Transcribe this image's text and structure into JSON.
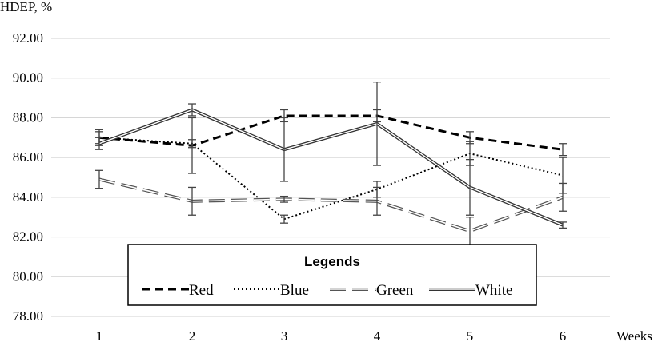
{
  "chart_data": {
    "type": "line",
    "ylabel": "HDEP, %",
    "xlabel": "Weeks",
    "x": [
      1,
      2,
      3,
      4,
      5,
      6
    ],
    "x_tick_labels": [
      "1",
      "2",
      "3",
      "4",
      "5",
      "6"
    ],
    "ylim": [
      78,
      92
    ],
    "y_tick_labels": [
      "78.00",
      "80.00",
      "82.00",
      "84.00",
      "86.00",
      "88.00",
      "90.00",
      "92.00"
    ],
    "y_ticks": [
      78,
      80,
      82,
      84,
      86,
      88,
      90,
      92
    ],
    "grid": "horizontal",
    "legend_title": "Legends",
    "legend_position": "bottom-center",
    "series": [
      {
        "name": "Red",
        "style": "dashed-bold",
        "values": [
          87.0,
          86.6,
          88.1,
          88.1,
          87.0,
          86.4
        ],
        "error": [
          0.4,
          1.4,
          0.3,
          0.3,
          0.3,
          0.3
        ]
      },
      {
        "name": "Blue",
        "style": "dotted",
        "values": [
          87.0,
          86.7,
          82.9,
          84.4,
          86.2,
          85.1
        ],
        "error": [
          0.3,
          0.2,
          0.2,
          0.4,
          0.6,
          0.9
        ]
      },
      {
        "name": "Green",
        "style": "long-dash-double",
        "values": [
          84.9,
          83.8,
          83.9,
          83.8,
          82.3,
          84.0
        ],
        "error": [
          0.45,
          0.7,
          0.15,
          0.7,
          0.7,
          0.7
        ]
      },
      {
        "name": "White",
        "style": "double-line",
        "values": [
          86.7,
          88.4,
          86.4,
          87.7,
          84.5,
          82.6
        ],
        "error": [
          0.3,
          0.3,
          1.6,
          2.1,
          1.4,
          0.15
        ]
      }
    ]
  }
}
